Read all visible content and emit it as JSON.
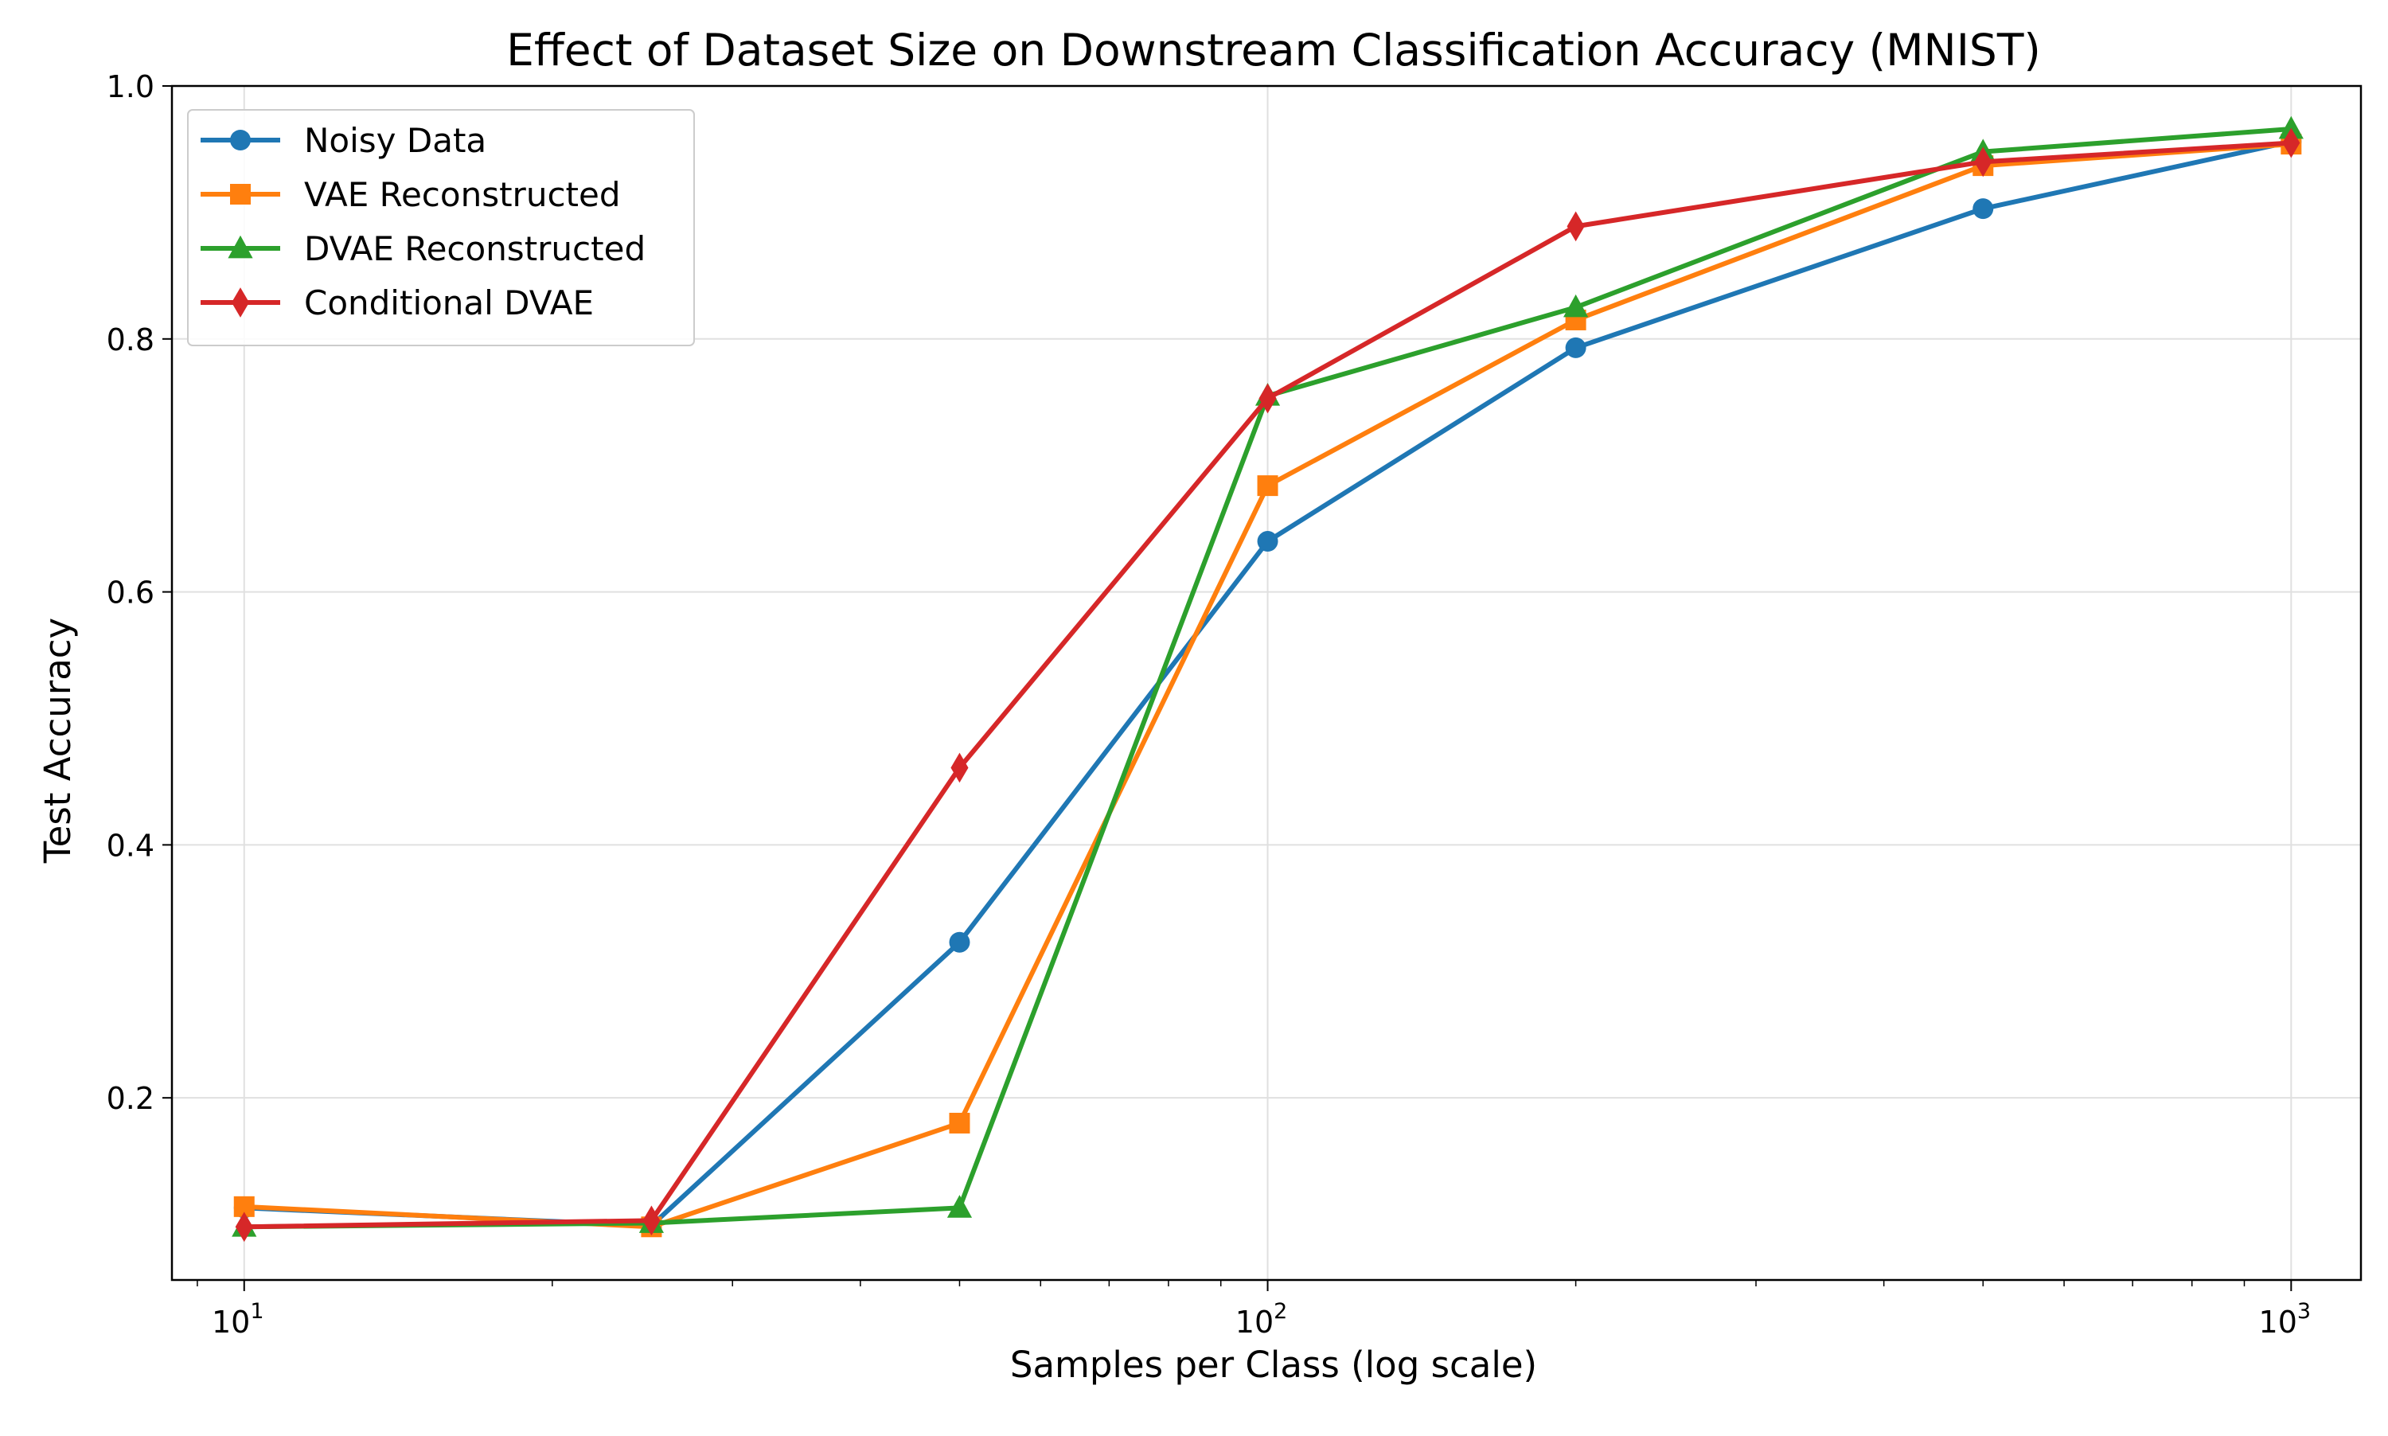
{
  "chart_data": {
    "type": "line",
    "title": "Effect of Dataset Size on Downstream Classification Accuracy (MNIST)",
    "xlabel": "Samples per Class (log scale)",
    "ylabel": "Test Accuracy",
    "x_scale": "log",
    "x": [
      10,
      25,
      50,
      100,
      200,
      500,
      1000
    ],
    "xlim": [
      8.5,
      1170
    ],
    "ylim": [
      0.056,
      1.0
    ],
    "x_ticks": [
      {
        "base": "10",
        "exp": "1",
        "value": 10
      },
      {
        "base": "10",
        "exp": "2",
        "value": 100
      },
      {
        "base": "10",
        "exp": "3",
        "value": 1000
      }
    ],
    "y_ticks": [
      "0.2",
      "0.4",
      "0.6",
      "0.8",
      "1.0"
    ],
    "y_tick_values": [
      0.2,
      0.4,
      0.6,
      0.8,
      1.0
    ],
    "grid": true,
    "legend_position": "top-left",
    "series": [
      {
        "name": "Noisy Data",
        "color": "#1f77b4",
        "marker": "circle",
        "values": [
          0.113,
          0.099,
          0.323,
          0.64,
          0.793,
          0.903,
          0.956
        ]
      },
      {
        "name": "VAE Reconstructed",
        "color": "#ff7f0e",
        "marker": "square",
        "values": [
          0.114,
          0.098,
          0.18,
          0.684,
          0.815,
          0.937,
          0.954
        ]
      },
      {
        "name": "DVAE Reconstructed",
        "color": "#2ca02c",
        "marker": "triangle",
        "values": [
          0.098,
          0.101,
          0.113,
          0.755,
          0.825,
          0.948,
          0.966
        ]
      },
      {
        "name": "Conditional DVAE",
        "color": "#d62728",
        "marker": "diamond",
        "values": [
          0.098,
          0.103,
          0.461,
          0.753,
          0.889,
          0.94,
          0.955
        ]
      }
    ]
  }
}
